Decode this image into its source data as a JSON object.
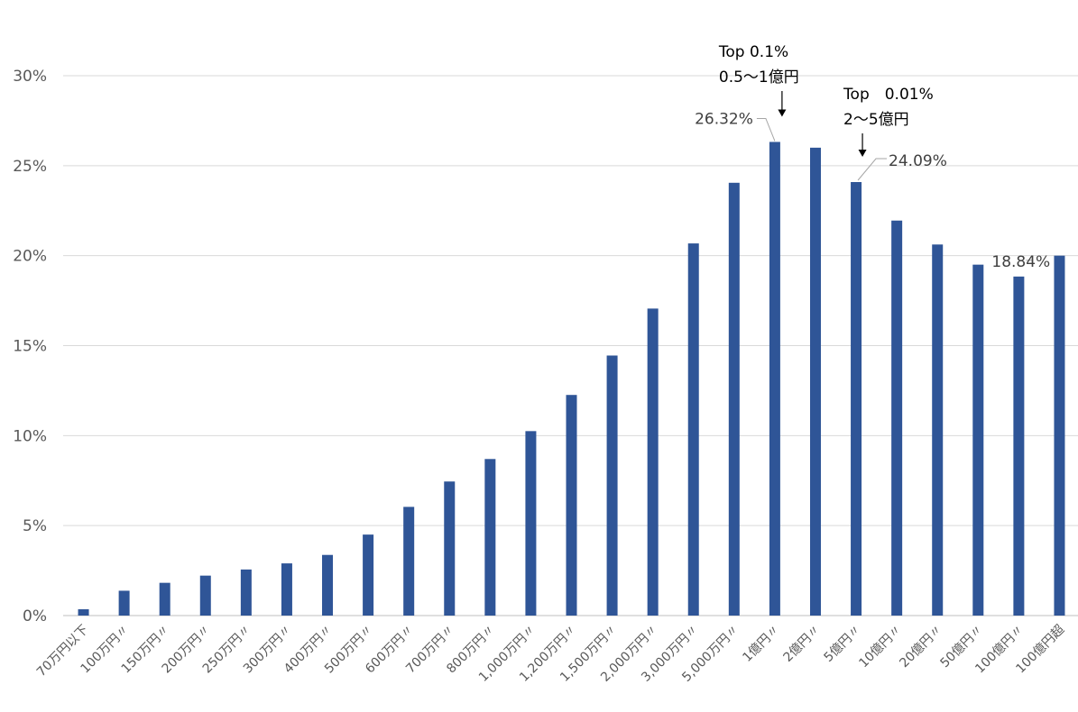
{
  "chart_data": {
    "type": "bar",
    "title": "",
    "xlabel": "",
    "ylabel": "",
    "ylim": [
      0,
      30
    ],
    "yticks": [
      0,
      5,
      10,
      15,
      20,
      25,
      30
    ],
    "ytick_labels": [
      "0%",
      "5%",
      "10%",
      "15%",
      "20%",
      "25%",
      "30%"
    ],
    "grid": true,
    "bar_color": "#2F5597",
    "categories": [
      "70万円以下",
      "100万円〃",
      "150万円〃",
      "200万円〃",
      "250万円〃",
      "300万円〃",
      "400万円〃",
      "500万円〃",
      "600万円〃",
      "700万円〃",
      "800万円〃",
      "1,000万円〃",
      "1,200万円〃",
      "1,500万円〃",
      "2,000万円〃",
      "3,000万円〃",
      "5,000万円〃",
      "1億円〃",
      "2億円〃",
      "5億円〃",
      "10億円〃",
      "20億円〃",
      "50億円〃",
      "100億円〃",
      "100億円超"
    ],
    "values": [
      0.35,
      1.38,
      1.82,
      2.22,
      2.56,
      2.9,
      3.37,
      4.5,
      6.04,
      7.45,
      8.7,
      10.25,
      12.26,
      14.45,
      17.06,
      20.68,
      24.05,
      26.32,
      26.0,
      24.09,
      21.95,
      20.62,
      19.5,
      18.84,
      20.0
    ],
    "data_labels": [
      {
        "index": 17,
        "text": "26.32%"
      },
      {
        "index": 19,
        "text": "24.09%"
      },
      {
        "index": 23,
        "text": "18.84%"
      }
    ],
    "annotations": [
      {
        "index": 17,
        "lines": [
          "Top 0.1%",
          "0.5〜1億円"
        ]
      },
      {
        "index": 19,
        "lines": [
          "Top　0.01%",
          "2〜5億円"
        ]
      }
    ]
  }
}
